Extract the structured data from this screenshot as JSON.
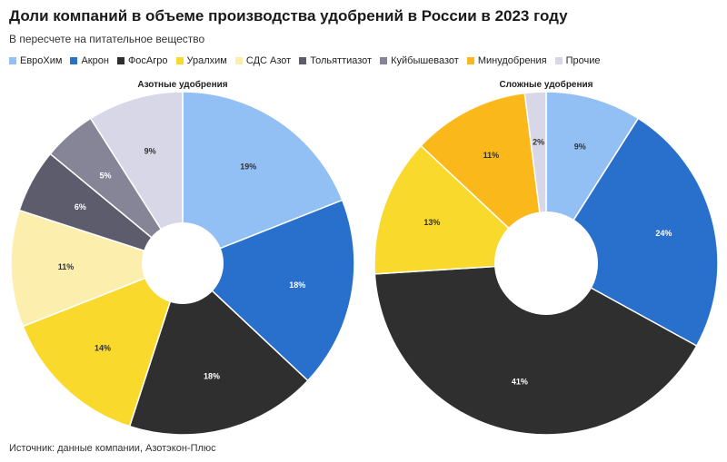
{
  "title": "Доли компаний в объеме производства удобрений в России в 2023 году",
  "subtitle": "В пересчете на питательное вещество",
  "source": "Источник: данные компании, Азотэкон-Плюс",
  "legend": [
    {
      "name": "ЕвроХим",
      "color": "#92bff4"
    },
    {
      "name": "Акрон",
      "color": "#2870cc"
    },
    {
      "name": "ФосАгро",
      "color": "#2f2f2f"
    },
    {
      "name": "Уралхим",
      "color": "#f9d92c"
    },
    {
      "name": "СДС Азот",
      "color": "#fcefae"
    },
    {
      "name": "Тольяттиазот",
      "color": "#5c5c6c"
    },
    {
      "name": "Куйбышевазот",
      "color": "#868597"
    },
    {
      "name": "Минудобрения",
      "color": "#fbb81a"
    },
    {
      "name": "Прочие",
      "color": "#d8d7e7"
    }
  ],
  "chart_data": [
    {
      "type": "pie",
      "title": "Азотные удобрения",
      "slices": [
        {
          "name": "ЕвроХим",
          "value": 19,
          "label": "19%"
        },
        {
          "name": "Акрон",
          "value": 18,
          "label": "18%"
        },
        {
          "name": "ФосАгро",
          "value": 18,
          "label": "18%"
        },
        {
          "name": "Уралхим",
          "value": 14,
          "label": "14%"
        },
        {
          "name": "СДС Азот",
          "value": 11,
          "label": "11%"
        },
        {
          "name": "Тольяттиазот",
          "value": 6,
          "label": "6%"
        },
        {
          "name": "Куйбышевазот",
          "value": 5,
          "label": "5%"
        },
        {
          "name": "Прочие",
          "value": 9,
          "label": "9%"
        }
      ]
    },
    {
      "type": "pie",
      "title": "Сложные удобрения",
      "slices": [
        {
          "name": "ЕвроХим",
          "value": 9,
          "label": "9%"
        },
        {
          "name": "Акрон",
          "value": 24,
          "label": "24%"
        },
        {
          "name": "ФосАгро",
          "value": 41,
          "label": "41%"
        },
        {
          "name": "Уралхим",
          "value": 13,
          "label": "13%"
        },
        {
          "name": "Минудобрения",
          "value": 11,
          "label": "11%"
        },
        {
          "name": "Прочие",
          "value": 2,
          "label": "2%"
        }
      ]
    }
  ]
}
